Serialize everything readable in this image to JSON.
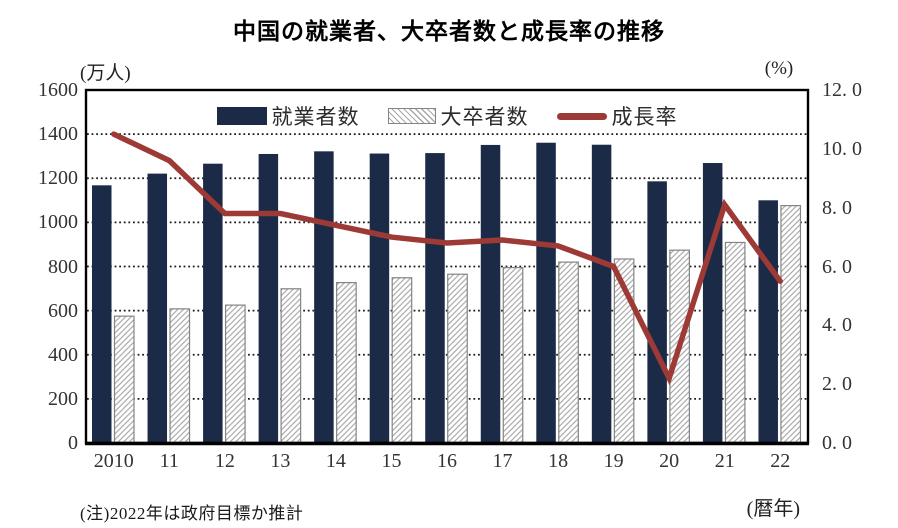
{
  "title": "中国の就業者、大卒者数と成長率の推移",
  "note": "(注)2022年は政府目標か推計",
  "x_axis_unit": "(暦年)",
  "colors": {
    "employment_bar": "#1b2a47",
    "graduates_hatch_line": "#a8a8a8",
    "graduates_border": "#848484",
    "growth_line": "#9e3a36",
    "grid": "#1a1a1a",
    "frame": "#000000"
  },
  "legend": [
    {
      "label": "就業者数",
      "series": "employment",
      "swatch": "solid-bar"
    },
    {
      "label": "大卒者数",
      "series": "graduates",
      "swatch": "hatched-bar"
    },
    {
      "label": "成長率",
      "series": "growth_rate",
      "swatch": "line"
    }
  ],
  "chart_data": {
    "type": "bar",
    "subtype": "grouped bars with overlaid line on secondary axis",
    "title": "中国の就業者、大卒者数と成長率の推移",
    "categories": [
      "2010",
      "11",
      "12",
      "13",
      "14",
      "15",
      "16",
      "17",
      "18",
      "19",
      "20",
      "21",
      "22"
    ],
    "series": [
      {
        "name": "就業者数",
        "type": "bar",
        "style": "solid",
        "axis": "left",
        "values": [
          1168,
          1221,
          1266,
          1310,
          1322,
          1312,
          1314,
          1351,
          1361,
          1352,
          1186,
          1269,
          1100
        ]
      },
      {
        "name": "大卒者数",
        "type": "bar",
        "style": "hatched",
        "axis": "left",
        "values": [
          575,
          608,
          625,
          699,
          727,
          749,
          765,
          795,
          820,
          834,
          874,
          909,
          1076
        ]
      },
      {
        "name": "成長率",
        "type": "line",
        "axis": "right",
        "values": [
          10.5,
          9.6,
          7.8,
          7.8,
          7.4,
          7.0,
          6.8,
          6.9,
          6.7,
          6.0,
          2.2,
          8.1,
          5.5
        ]
      }
    ],
    "left_axis": {
      "unit": "(万人)",
      "min": 0,
      "max": 1600,
      "step": 200,
      "ticks": [
        "0",
        "200",
        "400",
        "600",
        "800",
        "1000",
        "1200",
        "1400",
        "1600"
      ]
    },
    "right_axis": {
      "unit": "(%)",
      "min": 0,
      "max": 12,
      "step": 2,
      "ticks": [
        "0. 0",
        "2. 0",
        "4. 0",
        "6. 0",
        "8. 0",
        "10. 0",
        "12. 0"
      ]
    },
    "x_axis_label": "(暦年)",
    "grid": "horizontal dotted lines every 200 万人",
    "legend_position": "top-center"
  }
}
